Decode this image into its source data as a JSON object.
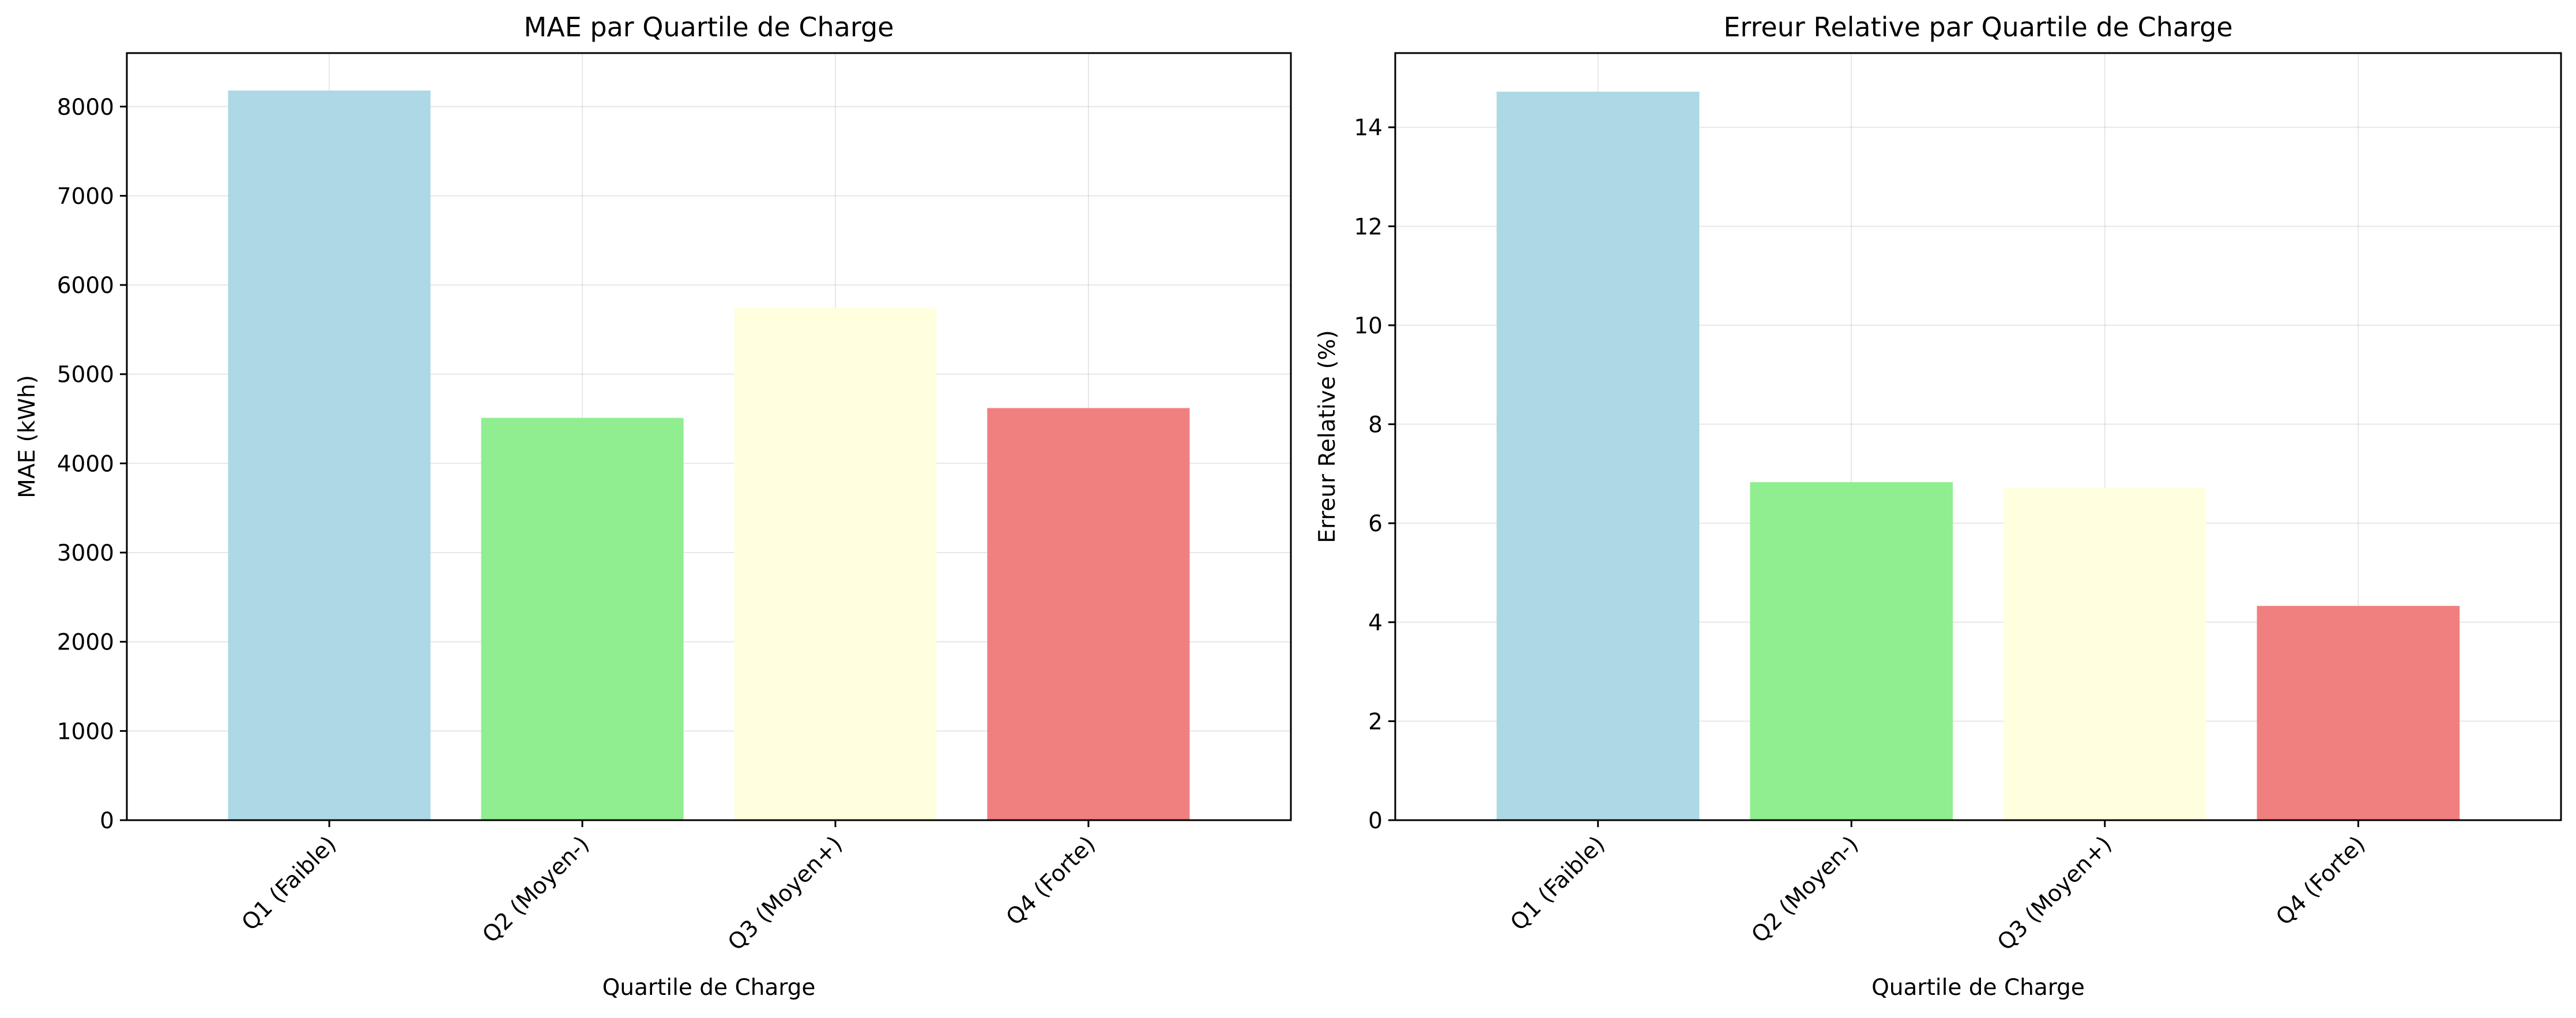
{
  "chart_data": [
    {
      "type": "bar",
      "title": "MAE par Quartile de Charge",
      "xlabel": "Quartile de Charge",
      "ylabel": "MAE (kWh)",
      "categories": [
        "Q1 (Faible)",
        "Q2 (Moyen-)",
        "Q3 (Moyen+)",
        "Q4 (Forte)"
      ],
      "values": [
        8180,
        4510,
        5750,
        4620
      ],
      "colors": [
        "#add8e6",
        "#90ee90",
        "#ffffe0",
        "#f08080"
      ],
      "ylim": [
        0,
        8600
      ],
      "yticks": [
        0,
        1000,
        2000,
        3000,
        4000,
        5000,
        6000,
        7000,
        8000
      ],
      "ytick_labels": [
        "0",
        "1000",
        "2000",
        "3000",
        "4000",
        "5000",
        "6000",
        "7000",
        "8000"
      ],
      "grid": true,
      "xtick_rotation": 45
    },
    {
      "type": "bar",
      "title": "Erreur Relative par Quartile de Charge",
      "xlabel": "Quartile de Charge",
      "ylabel": "Erreur Relative (%)",
      "categories": [
        "Q1 (Faible)",
        "Q2 (Moyen-)",
        "Q3 (Moyen+)",
        "Q4 (Forte)"
      ],
      "values": [
        14.72,
        6.83,
        6.72,
        4.33
      ],
      "colors": [
        "#add8e6",
        "#90ee90",
        "#ffffe0",
        "#f08080"
      ],
      "ylim": [
        0,
        15.5
      ],
      "yticks": [
        0,
        2,
        4,
        6,
        8,
        10,
        12,
        14
      ],
      "ytick_labels": [
        "0",
        "2",
        "4",
        "6",
        "8",
        "10",
        "12",
        "14"
      ],
      "grid": true,
      "xtick_rotation": 45
    }
  ]
}
